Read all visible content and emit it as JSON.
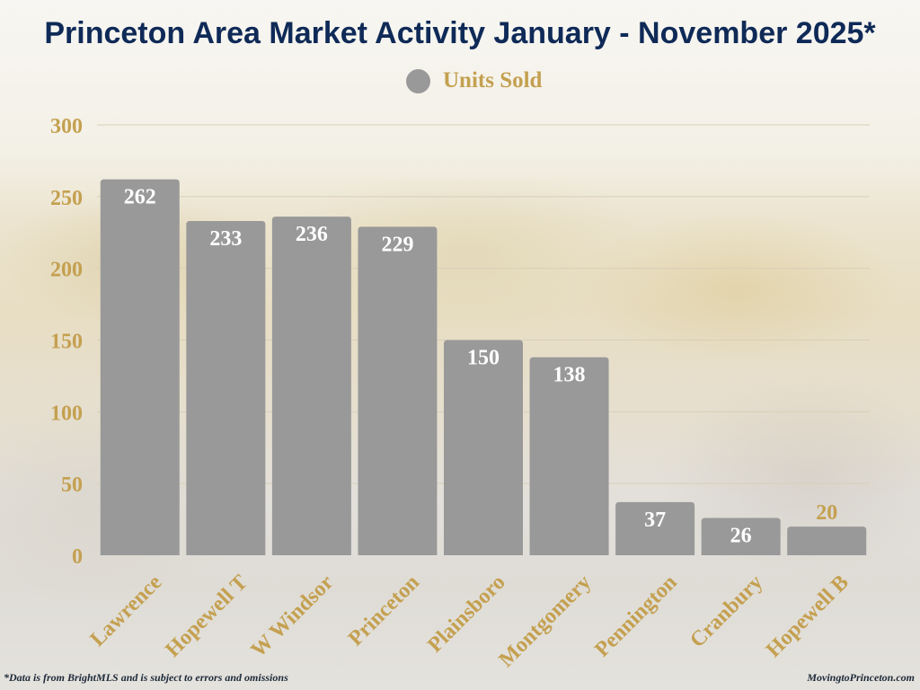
{
  "chart_data": {
    "type": "bar",
    "title": "Princeton Area Market Activity January - November 2025*",
    "xlabel": "",
    "ylabel": "",
    "ylim": [
      0,
      300
    ],
    "yticks": [
      0,
      50,
      100,
      150,
      200,
      250,
      300
    ],
    "grid": true,
    "legend_position": "top-center",
    "categories": [
      "Lawrence",
      "Hopewell T",
      "W Windsor",
      "Princeton",
      "Plainsboro",
      "Montgomery",
      "Pennington",
      "Cranbury",
      "Hopewell B"
    ],
    "series": [
      {
        "name": "Units Sold",
        "color": "#999999",
        "values": [
          262,
          233,
          236,
          229,
          150,
          138,
          37,
          26,
          20
        ]
      }
    ]
  },
  "colors": {
    "title": "#0f2a57",
    "accent_gold": "#c4a050",
    "bar": "#999999",
    "bar_label": "#ffffff"
  },
  "footnote": "*Data is from BrightMLS and is subject to errors and omissions",
  "credit": "MovingtoPrinceton.com"
}
